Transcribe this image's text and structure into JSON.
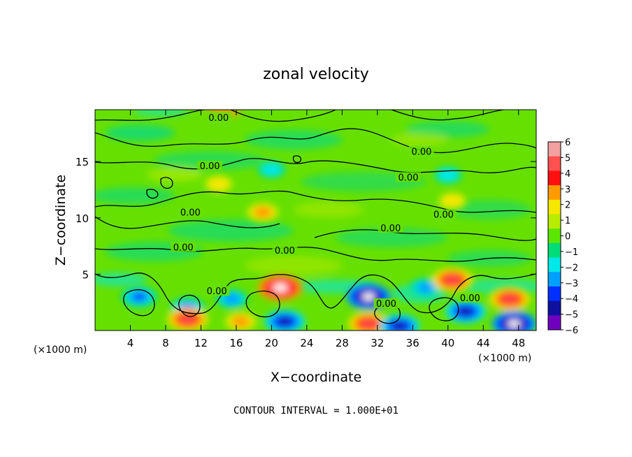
{
  "chart_data": {
    "type": "heatmap",
    "title": "zonal velocity",
    "xlabel": "X−coordinate",
    "ylabel": "Z−coordinate",
    "x_unit_left": "(×1000 m)",
    "x_unit_right": "(×1000 m)",
    "xlim": [
      0,
      50
    ],
    "ylim": [
      0,
      19.6
    ],
    "xticks": [
      4,
      8,
      12,
      16,
      20,
      24,
      28,
      32,
      36,
      40,
      44,
      48
    ],
    "yticks": [
      5,
      10,
      15
    ],
    "contour_label": "0.00",
    "contour_interval_text": "CONTOUR INTERVAL = 1.000E+01",
    "colorbar": {
      "ticks": [
        "6",
        "5",
        "4",
        "3",
        "2",
        "1",
        "0",
        "−1",
        "−2",
        "−3",
        "−4",
        "−5",
        "−6"
      ],
      "colors": [
        "#f2a0a0",
        "#ff5050",
        "#ff1010",
        "#ff9a00",
        "#f5e800",
        "#b8ec00",
        "#5ae600",
        "#00dc78",
        "#00e8e8",
        "#00a0ff",
        "#0030ff",
        "#1010a0",
        "#7000c0"
      ]
    },
    "features": [
      {
        "kind": "negative",
        "x": 5.0,
        "z": 3.0,
        "value": -4
      },
      {
        "kind": "negative",
        "x": 10.5,
        "z": 2.0,
        "value": -4
      },
      {
        "kind": "positive",
        "x": 10.5,
        "z": 1.0,
        "value": 5
      },
      {
        "kind": "negative",
        "x": 15.5,
        "z": 2.8,
        "value": -3
      },
      {
        "kind": "positive",
        "x": 16.5,
        "z": 0.8,
        "value": 3
      },
      {
        "kind": "positive",
        "x": 21.0,
        "z": 3.8,
        "value": 6
      },
      {
        "kind": "negative",
        "x": 21.5,
        "z": 0.8,
        "value": -5
      },
      {
        "kind": "negative",
        "x": 31.0,
        "z": 3.0,
        "value": -6
      },
      {
        "kind": "positive",
        "x": 31.0,
        "z": 0.6,
        "value": 5
      },
      {
        "kind": "negative",
        "x": 34.5,
        "z": 0.4,
        "value": -5
      },
      {
        "kind": "negative",
        "x": 37.5,
        "z": 3.8,
        "value": -3
      },
      {
        "kind": "positive",
        "x": 40.5,
        "z": 4.5,
        "value": 5
      },
      {
        "kind": "negative",
        "x": 42.0,
        "z": 1.7,
        "value": -5
      },
      {
        "kind": "positive",
        "x": 47.0,
        "z": 2.8,
        "value": 5
      },
      {
        "kind": "negative",
        "x": 47.5,
        "z": 0.6,
        "value": -6
      },
      {
        "kind": "negative",
        "x": 20.0,
        "z": 14.3,
        "value": -2
      },
      {
        "kind": "negative",
        "x": 40.0,
        "z": 13.8,
        "value": -2
      },
      {
        "kind": "positive",
        "x": 40.5,
        "z": 11.5,
        "value": 2
      },
      {
        "kind": "positive",
        "x": 19.0,
        "z": 10.5,
        "value": 3
      },
      {
        "kind": "positive",
        "x": 14.0,
        "z": 13.0,
        "value": 2
      }
    ],
    "contour_labels": [
      {
        "x": 14.0,
        "z": 18.8
      },
      {
        "x": 13.0,
        "z": 14.5
      },
      {
        "x": 10.8,
        "z": 10.4
      },
      {
        "x": 10.0,
        "z": 7.3
      },
      {
        "x": 21.5,
        "z": 7.0
      },
      {
        "x": 13.8,
        "z": 3.4
      },
      {
        "x": 37.0,
        "z": 15.8
      },
      {
        "x": 35.5,
        "z": 13.5
      },
      {
        "x": 39.5,
        "z": 10.2
      },
      {
        "x": 33.5,
        "z": 9.0
      },
      {
        "x": 33.0,
        "z": 2.3
      },
      {
        "x": 42.5,
        "z": 2.8
      }
    ]
  }
}
